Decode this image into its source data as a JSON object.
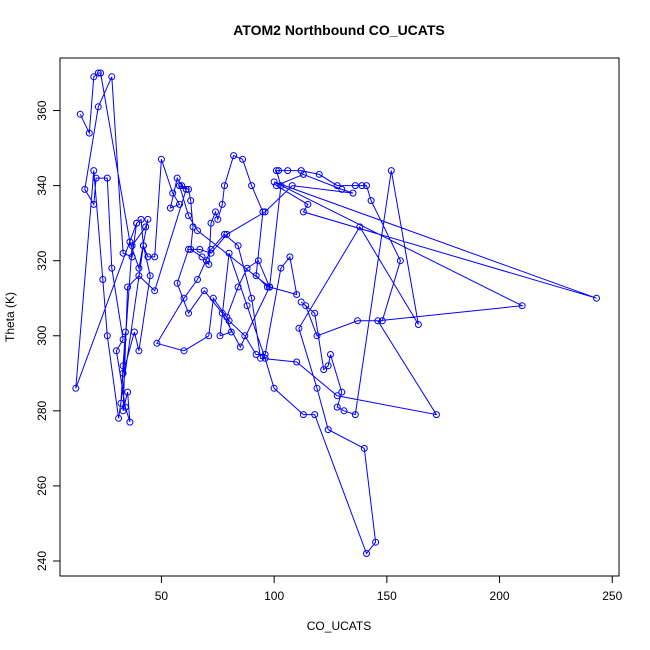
{
  "chart_data": {
    "type": "line",
    "title": "ATOM2 Northbound CO_UCATS",
    "xlabel": "CO_UCATS",
    "ylabel": "Theta (K)",
    "xlim": [
      5,
      253
    ],
    "ylim": [
      236,
      374
    ],
    "xticks": [
      50,
      100,
      150,
      200,
      250
    ],
    "yticks": [
      240,
      260,
      280,
      300,
      320,
      340,
      360
    ],
    "grid": false,
    "marker": "open-circle",
    "color": "#0000ff",
    "series": [
      {
        "points": [
          [
            14,
            359
          ],
          [
            18,
            354
          ],
          [
            20,
            369
          ],
          [
            22,
            370
          ],
          [
            23,
            370
          ],
          [
            36,
            325
          ],
          [
            40,
            318
          ],
          [
            44,
            331
          ],
          [
            43,
            329
          ],
          [
            37,
            324
          ],
          [
            32,
            282
          ],
          [
            33,
            292
          ],
          [
            34,
            301
          ],
          [
            33,
            290
          ],
          [
            38,
            301
          ],
          [
            40,
            296
          ],
          [
            45,
            316
          ],
          [
            42,
            324
          ],
          [
            44,
            321
          ],
          [
            47,
            321
          ],
          [
            50,
            347
          ],
          [
            55,
            338
          ],
          [
            58,
            335
          ],
          [
            54,
            334
          ],
          [
            57,
            342
          ],
          [
            59,
            340
          ],
          [
            62,
            339
          ],
          [
            63,
            336
          ],
          [
            64,
            329
          ],
          [
            63,
            323
          ],
          [
            68,
            321
          ],
          [
            70,
            320
          ],
          [
            71,
            319
          ],
          [
            72,
            330
          ],
          [
            74,
            333
          ],
          [
            75,
            331
          ],
          [
            77,
            335
          ],
          [
            78,
            340
          ],
          [
            82,
            348
          ],
          [
            86,
            347
          ],
          [
            90,
            340
          ],
          [
            95,
            333
          ],
          [
            92,
            316
          ],
          [
            97,
            313
          ],
          [
            98,
            313
          ],
          [
            103,
            340
          ],
          [
            101,
            344
          ],
          [
            102,
            344
          ],
          [
            106,
            344
          ],
          [
            112,
            344
          ],
          [
            120,
            343
          ],
          [
            128,
            340
          ],
          [
            136,
            340
          ],
          [
            139,
            340
          ],
          [
            141,
            340
          ],
          [
            143,
            336
          ],
          [
            156,
            320
          ],
          [
            148,
            304
          ],
          [
            137,
            304
          ],
          [
            119,
            300
          ],
          [
            114,
            308
          ],
          [
            112,
            309
          ],
          [
            118,
            306
          ],
          [
            122,
            291
          ],
          [
            124,
            292
          ],
          [
            125,
            295
          ],
          [
            130,
            285
          ],
          [
            128,
            281
          ],
          [
            131,
            280
          ],
          [
            136,
            279
          ],
          [
            152,
            344
          ],
          [
            164,
            303
          ],
          [
            138,
            329
          ],
          [
            111,
            302
          ],
          [
            119,
            286
          ],
          [
            124,
            275
          ],
          [
            140,
            270
          ],
          [
            145,
            245
          ],
          [
            141,
            242
          ],
          [
            118,
            279
          ],
          [
            113,
            279
          ],
          [
            100,
            286
          ],
          [
            96,
            294
          ],
          [
            88,
            308
          ],
          [
            80,
            322
          ],
          [
            76,
            300
          ],
          [
            81,
            301
          ],
          [
            79,
            305
          ],
          [
            84,
            313
          ],
          [
            88,
            318
          ],
          [
            93,
            320
          ],
          [
            98,
            313
          ],
          [
            110,
            311
          ],
          [
            107,
            321
          ],
          [
            103,
            318
          ],
          [
            96,
            295
          ],
          [
            92,
            295
          ],
          [
            87,
            300
          ],
          [
            80,
            304
          ],
          [
            73,
            310
          ],
          [
            71,
            300
          ],
          [
            60,
            296
          ],
          [
            48,
            298
          ],
          [
            60,
            310
          ],
          [
            66,
            315
          ],
          [
            72,
            323
          ],
          [
            78,
            327
          ],
          [
            84,
            324
          ],
          [
            90,
            310
          ],
          [
            94,
            294
          ],
          [
            110,
            293
          ],
          [
            128,
            284
          ],
          [
            172,
            279
          ],
          [
            146,
            304
          ],
          [
            210,
            308
          ],
          [
            100,
            341
          ],
          [
            243,
            310
          ],
          [
            113,
            333
          ],
          [
            115,
            335
          ],
          [
            101,
            340
          ],
          [
            113,
            343
          ],
          [
            130,
            339
          ],
          [
            135,
            338
          ],
          [
            108,
            340
          ],
          [
            96,
            333
          ],
          [
            79,
            327
          ],
          [
            72,
            322
          ],
          [
            67,
            323
          ],
          [
            62,
            323
          ],
          [
            57,
            314
          ],
          [
            62,
            306
          ],
          [
            69,
            312
          ],
          [
            77,
            306
          ],
          [
            85,
            297
          ],
          [
            98,
            313
          ],
          [
            66,
            328
          ],
          [
            62,
            332
          ],
          [
            58,
            340
          ],
          [
            61,
            339
          ],
          [
            47,
            312
          ],
          [
            40,
            316
          ],
          [
            35,
            313
          ],
          [
            33,
            280
          ],
          [
            35,
            285
          ],
          [
            36,
            277
          ],
          [
            34,
            281
          ],
          [
            30,
            296
          ],
          [
            33,
            299
          ],
          [
            28,
            318
          ],
          [
            26,
            342
          ],
          [
            21,
            342
          ],
          [
            20,
            335
          ],
          [
            16,
            339
          ],
          [
            22,
            361
          ],
          [
            28,
            369
          ],
          [
            33,
            322
          ],
          [
            37,
            321
          ],
          [
            39,
            330
          ],
          [
            41,
            331
          ],
          [
            42,
            324
          ],
          [
            31,
            278
          ],
          [
            26,
            300
          ],
          [
            24,
            315
          ],
          [
            20,
            344
          ],
          [
            12,
            286
          ],
          [
            39,
            330
          ]
        ]
      }
    ]
  }
}
